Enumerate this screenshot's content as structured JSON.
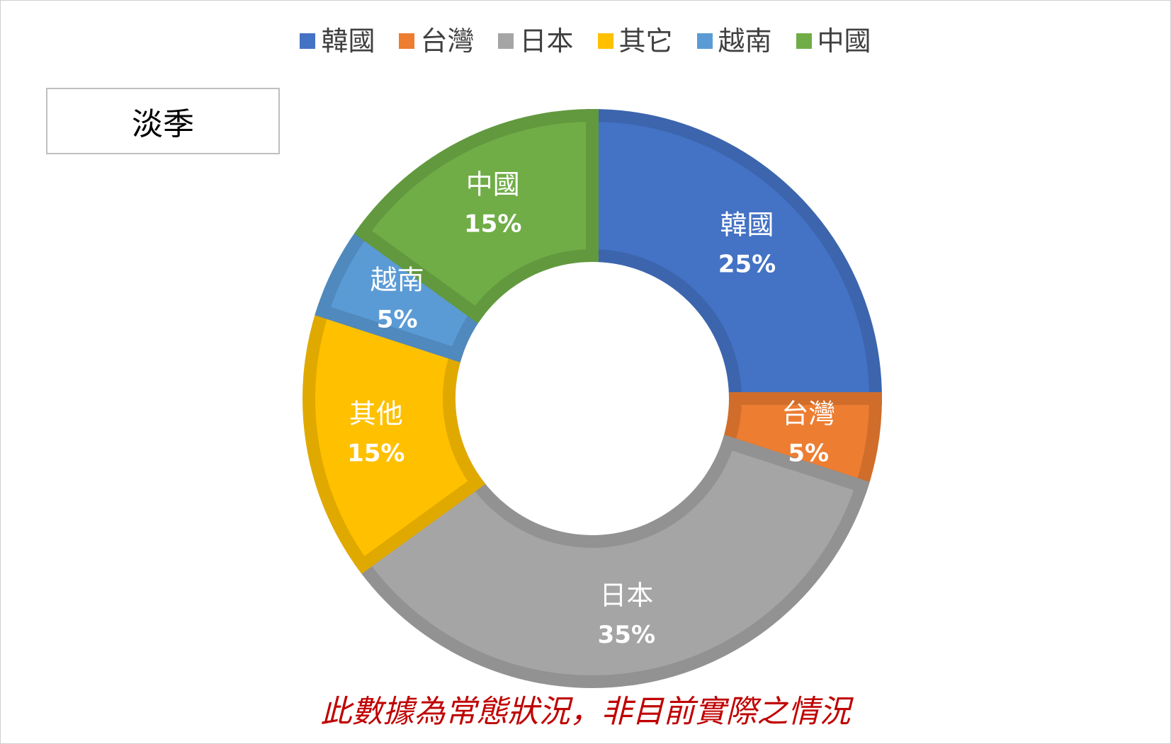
{
  "chart_data": {
    "type": "donut",
    "legend": {
      "position": "top",
      "entries": [
        {
          "name": "韓國",
          "color": "#4472C4"
        },
        {
          "name": "台灣",
          "color": "#ED7D31"
        },
        {
          "name": "日本",
          "color": "#A5A5A5"
        },
        {
          "name": "其它",
          "color": "#FFC000"
        },
        {
          "name": "越南",
          "color": "#5B9BD5"
        },
        {
          "name": "中國",
          "color": "#70AD47"
        }
      ]
    },
    "slices": [
      {
        "label": "韓國",
        "value": 25,
        "pct_label": "25%",
        "color": "#4472C4",
        "stroke": "#3C65AE"
      },
      {
        "label": "台灣",
        "value": 5,
        "pct_label": "5%",
        "color": "#ED7D31",
        "stroke": "#D06D2A"
      },
      {
        "label": "日本",
        "value": 35,
        "pct_label": "35%",
        "color": "#A5A5A5",
        "stroke": "#929292"
      },
      {
        "label": "其他",
        "value": 15,
        "pct_label": "15%",
        "color": "#FFC000",
        "stroke": "#E0A900"
      },
      {
        "label": "越南",
        "value": 5,
        "pct_label": "5%",
        "color": "#5B9BD5",
        "stroke": "#4F89BD"
      },
      {
        "label": "中國",
        "value": 15,
        "pct_label": "15%",
        "color": "#70AD47",
        "stroke": "#62993E"
      }
    ]
  },
  "season_label": "淡季",
  "footnote": "此數據為常態狀況，非目前實際之情況"
}
